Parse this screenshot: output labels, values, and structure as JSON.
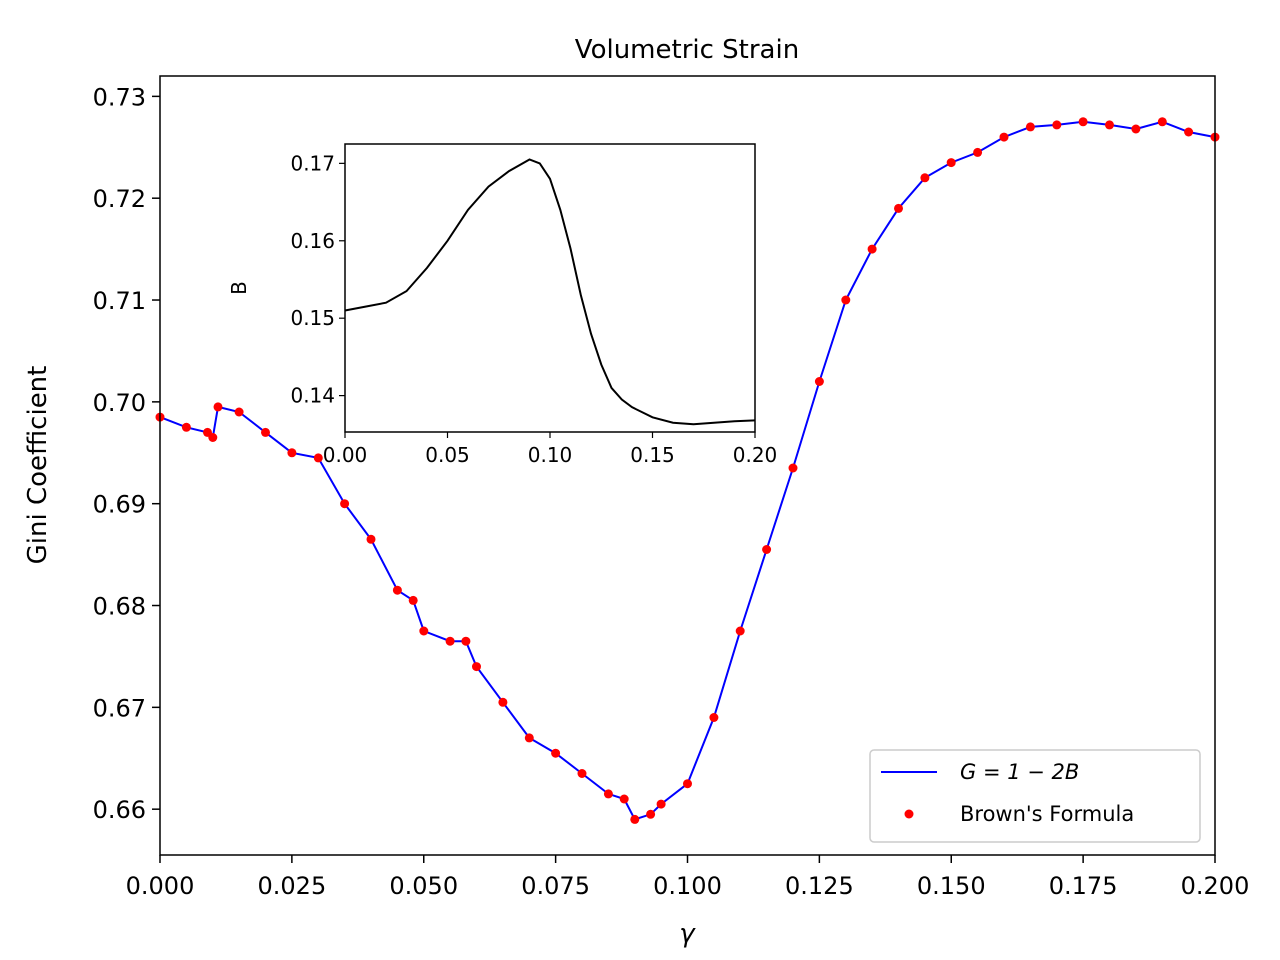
{
  "chart_data": [
    {
      "type": "line",
      "title": "Volumetric Strain",
      "xlabel": "γ",
      "ylabel": "Gini Coefficient",
      "xlim": [
        0.0,
        0.2
      ],
      "ylim": [
        0.6555,
        0.732
      ],
      "xticks": [
        "0.000",
        "0.025",
        "0.050",
        "0.075",
        "0.100",
        "0.125",
        "0.150",
        "0.175",
        "0.200"
      ],
      "xtick_values": [
        0.0,
        0.025,
        0.05,
        0.075,
        0.1,
        0.125,
        0.15,
        0.175,
        0.2
      ],
      "yticks": [
        "0.66",
        "0.67",
        "0.68",
        "0.69",
        "0.70",
        "0.71",
        "0.72",
        "0.73"
      ],
      "ytick_values": [
        0.66,
        0.67,
        0.68,
        0.69,
        0.7,
        0.71,
        0.72,
        0.73
      ],
      "grid": false,
      "legend_position": "lower-right",
      "series": [
        {
          "name": "G = 1 − 2B",
          "style": "line",
          "color": "#0000ff",
          "x": [
            0.0,
            0.005,
            0.009,
            0.01,
            0.011,
            0.015,
            0.02,
            0.025,
            0.03,
            0.035,
            0.04,
            0.045,
            0.048,
            0.05,
            0.055,
            0.058,
            0.06,
            0.065,
            0.07,
            0.075,
            0.08,
            0.085,
            0.088,
            0.09,
            0.093,
            0.095,
            0.1,
            0.105,
            0.11,
            0.115,
            0.12,
            0.125,
            0.13,
            0.135,
            0.14,
            0.145,
            0.15,
            0.155,
            0.16,
            0.165,
            0.17,
            0.175,
            0.18,
            0.185,
            0.19,
            0.195,
            0.2
          ],
          "y": [
            0.6985,
            0.6975,
            0.697,
            0.6965,
            0.6995,
            0.699,
            0.697,
            0.695,
            0.6945,
            0.69,
            0.6865,
            0.6815,
            0.6805,
            0.6775,
            0.6765,
            0.6765,
            0.674,
            0.6705,
            0.667,
            0.6655,
            0.6635,
            0.6615,
            0.661,
            0.659,
            0.6595,
            0.6605,
            0.6625,
            0.669,
            0.6775,
            0.6855,
            0.6935,
            0.702,
            0.71,
            0.715,
            0.719,
            0.722,
            0.7235,
            0.7245,
            0.726,
            0.727,
            0.7272,
            0.7275,
            0.7272,
            0.7268,
            0.7275,
            0.7265,
            0.726
          ]
        },
        {
          "name": "Brown's Formula",
          "style": "markers",
          "color": "#ff0000",
          "x": [
            0.0,
            0.005,
            0.009,
            0.01,
            0.011,
            0.015,
            0.02,
            0.025,
            0.03,
            0.035,
            0.04,
            0.045,
            0.048,
            0.05,
            0.055,
            0.058,
            0.06,
            0.065,
            0.07,
            0.075,
            0.08,
            0.085,
            0.088,
            0.09,
            0.093,
            0.095,
            0.1,
            0.105,
            0.11,
            0.115,
            0.12,
            0.125,
            0.13,
            0.135,
            0.14,
            0.145,
            0.15,
            0.155,
            0.16,
            0.165,
            0.17,
            0.175,
            0.18,
            0.185,
            0.19,
            0.195,
            0.2
          ],
          "y": [
            0.6985,
            0.6975,
            0.697,
            0.6965,
            0.6995,
            0.699,
            0.697,
            0.695,
            0.6945,
            0.69,
            0.6865,
            0.6815,
            0.6805,
            0.6775,
            0.6765,
            0.6765,
            0.674,
            0.6705,
            0.667,
            0.6655,
            0.6635,
            0.6615,
            0.661,
            0.659,
            0.6595,
            0.6605,
            0.6625,
            0.669,
            0.6775,
            0.6855,
            0.6935,
            0.702,
            0.71,
            0.715,
            0.719,
            0.722,
            0.7235,
            0.7245,
            0.726,
            0.727,
            0.7272,
            0.7275,
            0.7272,
            0.7268,
            0.7275,
            0.7265,
            0.726
          ]
        }
      ],
      "legend": [
        {
          "label": "G = 1 − 2B",
          "style": "line",
          "color": "#0000ff"
        },
        {
          "label": "Brown's Formula",
          "style": "marker",
          "color": "#ff0000"
        }
      ]
    },
    {
      "type": "line",
      "role": "inset",
      "title": "",
      "xlabel": "",
      "ylabel": "B",
      "xlim": [
        0.0,
        0.2
      ],
      "ylim": [
        0.1353,
        0.1725
      ],
      "xticks": [
        "0.00",
        "0.05",
        "0.10",
        "0.15",
        "0.20"
      ],
      "xtick_values": [
        0.0,
        0.05,
        0.1,
        0.15,
        0.2
      ],
      "yticks": [
        "0.14",
        "0.15",
        "0.16",
        "0.17"
      ],
      "ytick_values": [
        0.14,
        0.15,
        0.16,
        0.17
      ],
      "series": [
        {
          "name": "B",
          "color": "#000000",
          "x": [
            0.0,
            0.01,
            0.02,
            0.03,
            0.04,
            0.05,
            0.06,
            0.07,
            0.08,
            0.09,
            0.095,
            0.1,
            0.105,
            0.11,
            0.115,
            0.12,
            0.125,
            0.13,
            0.135,
            0.14,
            0.15,
            0.16,
            0.17,
            0.18,
            0.19,
            0.2
          ],
          "y": [
            0.151,
            0.1515,
            0.152,
            0.1535,
            0.1565,
            0.16,
            0.164,
            0.167,
            0.169,
            0.1705,
            0.17,
            0.168,
            0.164,
            0.159,
            0.153,
            0.148,
            0.144,
            0.141,
            0.1395,
            0.1385,
            0.1372,
            0.1365,
            0.1363,
            0.1365,
            0.1367,
            0.1368
          ]
        }
      ]
    }
  ],
  "colors": {
    "line": "#0000ff",
    "marker": "#ff0000",
    "inset_line": "#000000",
    "axes": "#000000"
  }
}
